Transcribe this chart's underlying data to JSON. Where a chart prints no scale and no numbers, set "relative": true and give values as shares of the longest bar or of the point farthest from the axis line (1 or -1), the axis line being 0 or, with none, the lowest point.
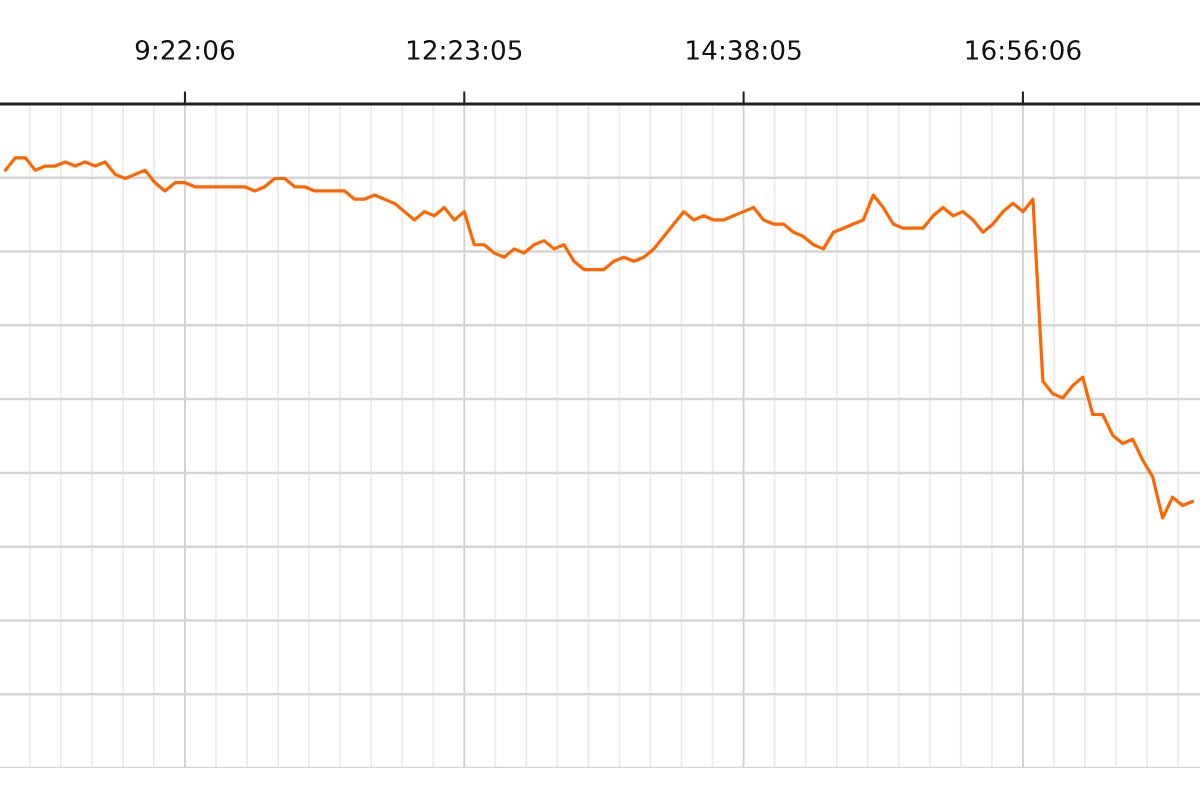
{
  "chart_data": {
    "type": "line",
    "relative": true,
    "grid": true,
    "tick_labels": "x",
    "line_style": "solid",
    "categories": [
      null,
      null,
      null,
      null,
      null,
      null,
      null,
      null,
      null,
      null,
      null,
      null,
      null,
      null,
      null,
      null,
      null,
      null,
      "9:22:06",
      null,
      null,
      null,
      null,
      null,
      null,
      null,
      null,
      null,
      null,
      null,
      null,
      null,
      null,
      null,
      null,
      null,
      null,
      null,
      null,
      null,
      null,
      null,
      null,
      null,
      null,
      null,
      "12:23:05",
      null,
      null,
      null,
      null,
      null,
      null,
      null,
      null,
      null,
      null,
      null,
      null,
      null,
      null,
      null,
      null,
      null,
      null,
      null,
      null,
      null,
      null,
      null,
      null,
      null,
      null,
      null,
      "14:38:05",
      null,
      null,
      null,
      null,
      null,
      null,
      null,
      null,
      null,
      null,
      null,
      null,
      null,
      null,
      null,
      null,
      null,
      null,
      null,
      null,
      null,
      null,
      null,
      null,
      null,
      null,
      null,
      "16:56:06",
      null,
      null,
      null,
      null,
      null,
      null,
      null,
      null,
      null,
      null,
      null,
      null,
      null,
      null,
      null,
      null,
      null
    ],
    "series": [
      {
        "color": "#ff6600",
        "values": [
          -0.16,
          -0.13,
          -0.13,
          -0.16,
          -0.15,
          -0.15,
          -0.14,
          -0.15,
          -0.14,
          -0.15,
          -0.14,
          -0.17,
          -0.18,
          -0.17,
          -0.16,
          -0.19,
          -0.21,
          -0.19,
          -0.19,
          -0.2,
          -0.2,
          -0.2,
          -0.2,
          -0.2,
          -0.2,
          -0.21,
          -0.2,
          -0.18,
          -0.18,
          -0.2,
          -0.2,
          -0.21,
          -0.21,
          -0.21,
          -0.21,
          -0.23,
          -0.23,
          -0.22,
          -0.23,
          -0.24,
          -0.26,
          -0.28,
          -0.26,
          -0.27,
          -0.25,
          -0.28,
          -0.26,
          -0.34,
          -0.34,
          -0.36,
          -0.37,
          -0.35,
          -0.36,
          -0.34,
          -0.33,
          -0.35,
          -0.34,
          -0.38,
          -0.4,
          -0.4,
          -0.4,
          -0.38,
          -0.37,
          -0.38,
          -0.37,
          -0.35,
          -0.32,
          -0.29,
          -0.26,
          -0.28,
          -0.27,
          -0.28,
          -0.28,
          -0.27,
          -0.26,
          -0.25,
          -0.28,
          -0.29,
          -0.29,
          -0.31,
          -0.32,
          -0.34,
          -0.35,
          -0.31,
          -0.3,
          -0.29,
          -0.28,
          -0.22,
          -0.25,
          -0.29,
          -0.3,
          -0.3,
          -0.3,
          -0.27,
          -0.25,
          -0.27,
          -0.26,
          -0.28,
          -0.31,
          -0.29,
          -0.26,
          -0.24,
          -0.26,
          -0.23,
          -0.67,
          -0.7,
          -0.71,
          -0.68,
          -0.66,
          -0.75,
          -0.75,
          -0.8,
          -0.82,
          -0.81,
          -0.86,
          -0.9,
          -1.0,
          -0.95,
          -0.97,
          -0.96
        ]
      }
    ]
  }
}
